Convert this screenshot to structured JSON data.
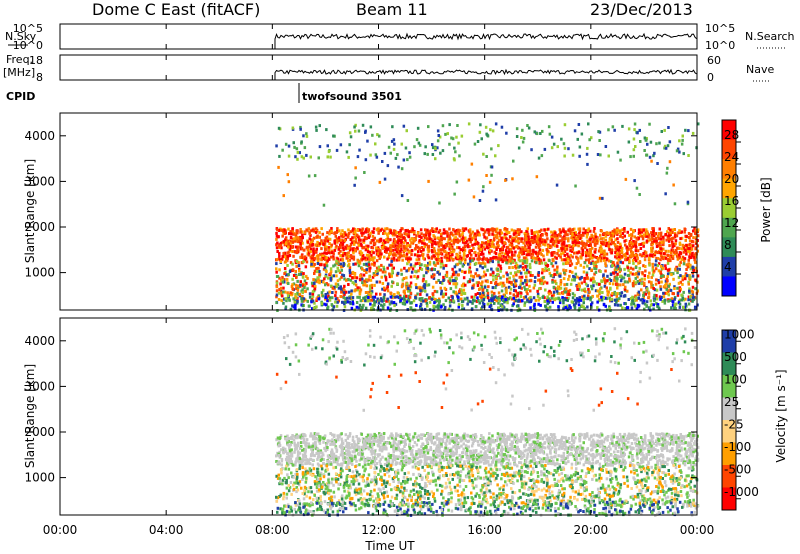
{
  "header": {
    "station": "Dome C East (fitACF)",
    "beam": "Beam 11",
    "date": "23/Dec/2013"
  },
  "panel_labels": {
    "nsky": "N.Sky",
    "nsearch": "N.Search",
    "freq": "Freq.",
    "freq_unit": "[MHz]",
    "nave": "Nave",
    "cpid": "CPID",
    "cpid_value": "twofsound 3501"
  },
  "colors": {
    "power_scale": [
      "#0000ff",
      "#1f3ea8",
      "#2e8b57",
      "#4fa64f",
      "#9acd32",
      "#ffa500",
      "#ff7f00",
      "#ff4500",
      "#ff0000"
    ],
    "velocity_scale": [
      "#1f3ea8",
      "#2e8b57",
      "#6ec84f",
      "#c8c8c8",
      "#ffd27f",
      "#ff9f00",
      "#ff4500",
      "#ff0000"
    ]
  },
  "chart_data": [
    {
      "type": "line",
      "name": "noise-panel",
      "ylabel_left": "N.Sky",
      "ylabel_right": "N.Search",
      "left_ticks": [
        "10^5",
        "10^0"
      ],
      "right_ticks": [
        "10^5",
        "10^0"
      ],
      "data_start_hour": 8.1
    },
    {
      "type": "line",
      "name": "frequency-panel",
      "ylabel_left": "Freq. [MHz]",
      "ylabel_right": "Nave",
      "left_ticks": [
        "18",
        "8"
      ],
      "right_ticks": [
        "60",
        "0"
      ],
      "data_start_hour": 8.1
    },
    {
      "type": "heatmap",
      "name": "power",
      "ylabel": "Slant Range [km]",
      "xlabel": "Time UT",
      "x_ticks": [
        "00:00",
        "04:00",
        "08:00",
        "12:00",
        "16:00",
        "20:00",
        "00:00"
      ],
      "y_ticks": [
        "1000",
        "2000",
        "3000",
        "4000"
      ],
      "ylim": [
        180,
        4500
      ],
      "colorbar_label": "Power [dB]",
      "colorbar_ticks": [
        "4",
        "8",
        "12",
        "16",
        "20",
        "24",
        "28"
      ],
      "data_start_hour": 8.1
    },
    {
      "type": "heatmap",
      "name": "velocity",
      "ylabel": "Slant Range [km]",
      "xlabel": "Time UT",
      "x_ticks": [
        "00:00",
        "04:00",
        "08:00",
        "12:00",
        "16:00",
        "20:00",
        "00:00"
      ],
      "y_ticks": [
        "1000",
        "2000",
        "3000",
        "4000"
      ],
      "ylim": [
        180,
        4500
      ],
      "colorbar_label": "Velocity [m s⁻¹]",
      "colorbar_ticks": [
        "1000",
        "500",
        "100",
        "25",
        "-25",
        "-100",
        "-500",
        "-1000"
      ],
      "data_start_hour": 8.1
    }
  ]
}
